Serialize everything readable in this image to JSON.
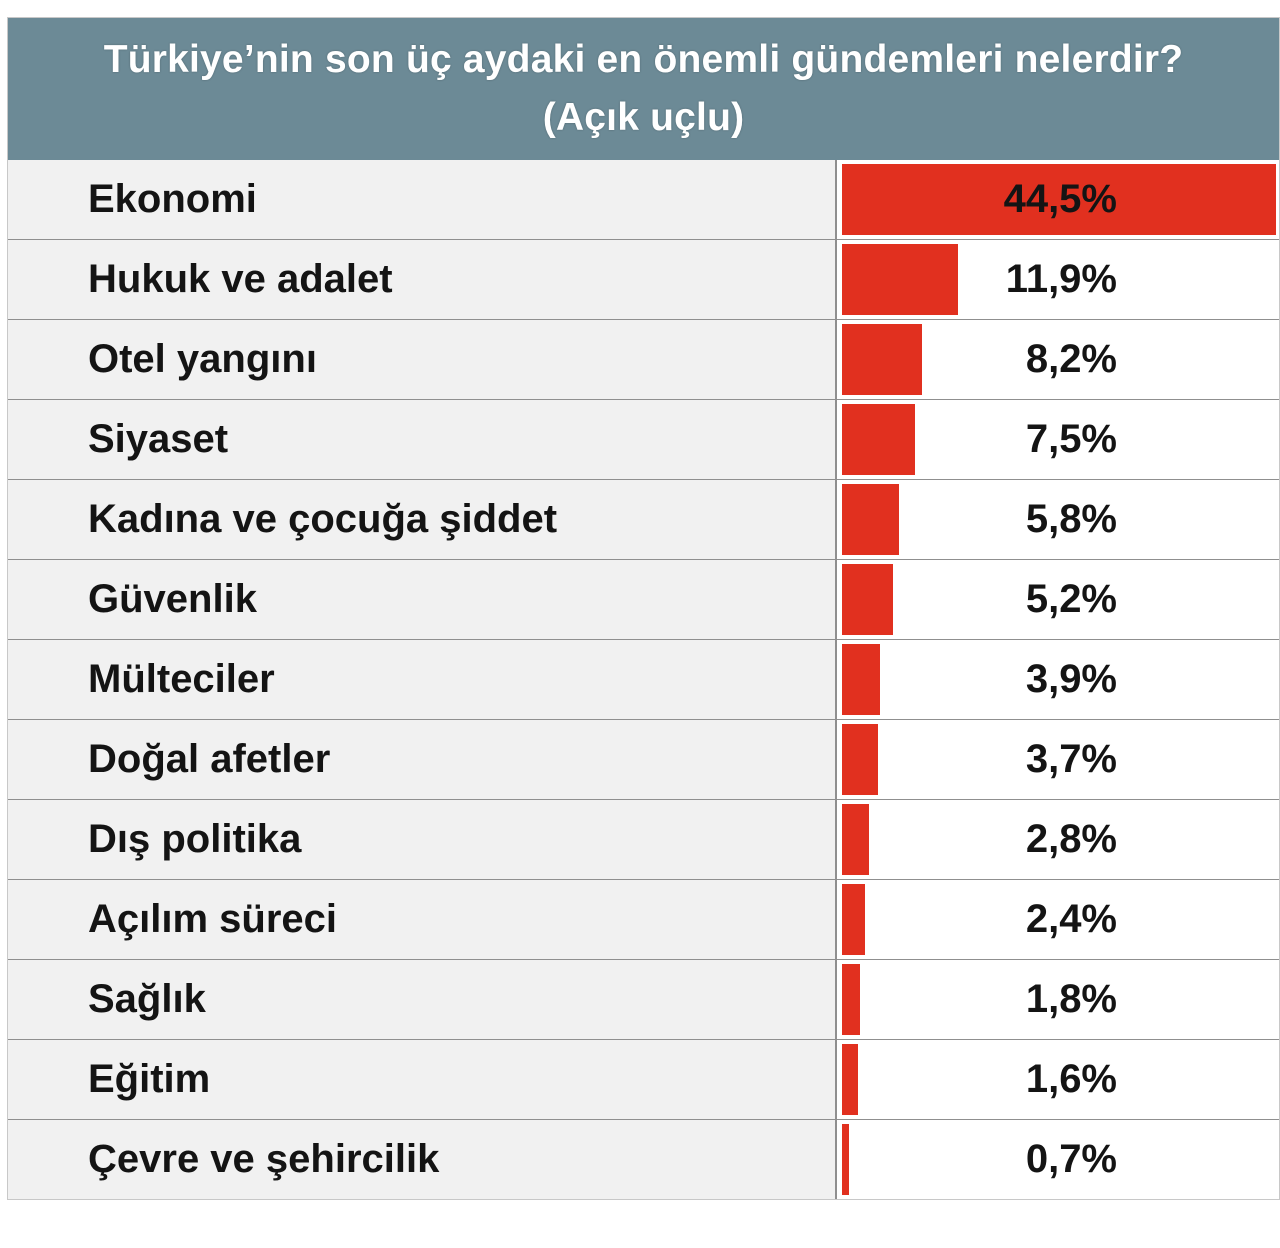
{
  "chart_data": {
    "type": "bar",
    "orientation": "horizontal",
    "title": "Türkiye’nin son üç aydaki en önemli gündemleri nelerdir?",
    "subtitle": "(Açık uçlu)",
    "categories": [
      "Ekonomi",
      "Hukuk ve adalet",
      "Otel yangını",
      "Siyaset",
      "Kadına ve çocuğa şiddet",
      "Güvenlik",
      "Mülteciler",
      "Doğal afetler",
      "Dış politika",
      "Açılım süreci",
      "Sağlık",
      "Eğitim",
      "Çevre ve şehircilik"
    ],
    "values": [
      44.5,
      11.9,
      8.2,
      7.5,
      5.8,
      5.2,
      3.9,
      3.7,
      2.8,
      2.4,
      1.8,
      1.6,
      0.7
    ],
    "value_labels": [
      "44,5%",
      "11,9%",
      "8,2%",
      "7,5%",
      "5,8%",
      "5,2%",
      "3,9%",
      "3,7%",
      "2,8%",
      "2,4%",
      "1,8%",
      "1,6%",
      "0,7%"
    ],
    "xlim": [
      0,
      44.5
    ],
    "colors": {
      "bar": "#e1301f",
      "title_background": "#6c8a96",
      "label_background": "#f1f1f1"
    }
  }
}
